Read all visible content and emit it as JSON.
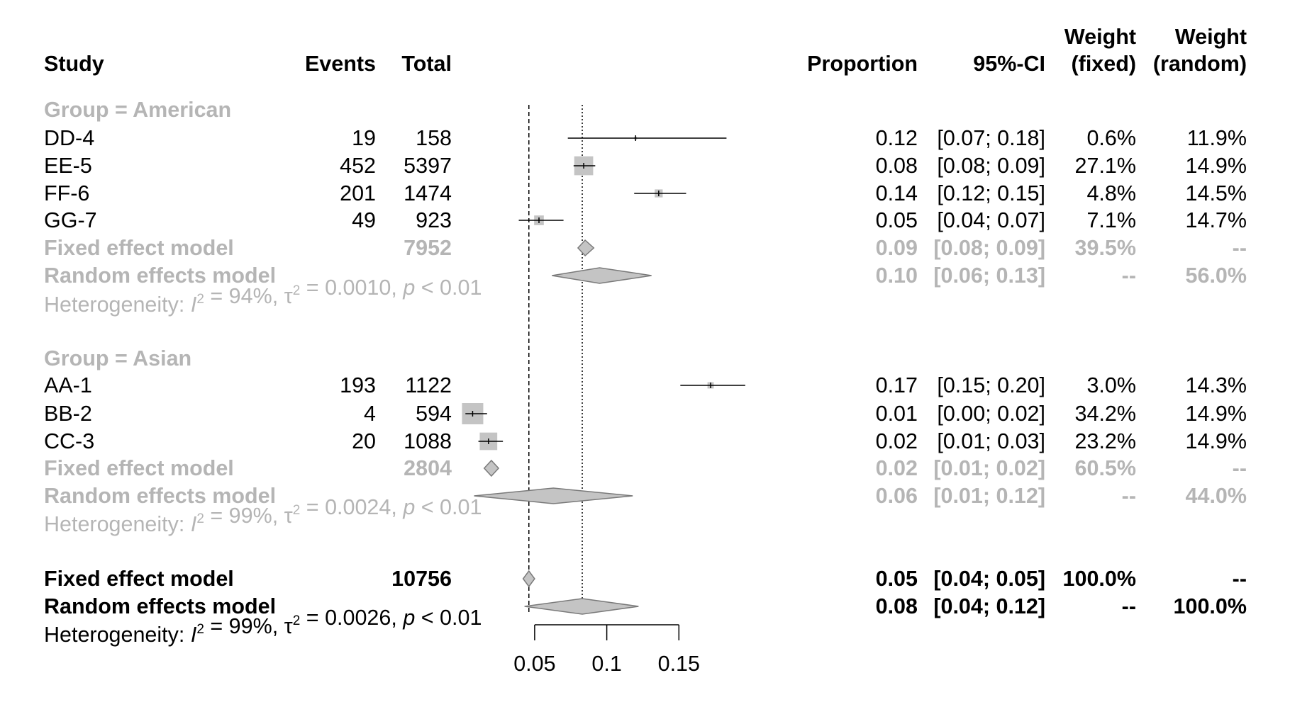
{
  "chart_data": {
    "type": "forest",
    "x_ticks": [
      "0.05",
      "0.1",
      "0.15"
    ],
    "x_tick_values": [
      0.05,
      0.1,
      0.15
    ],
    "xlim": [
      0.05,
      0.15
    ],
    "reference_lines": {
      "fixed_overall": 0.046,
      "random_overall": 0.083
    },
    "headers": {
      "study": "Study",
      "events": "Events",
      "total": "Total",
      "proportion": "Proportion",
      "ci": "95%-CI",
      "weight_fixed": [
        "Weight",
        "(fixed)"
      ],
      "weight_random": [
        "Weight",
        "(random)"
      ]
    },
    "groups": [
      {
        "label": "Group = American",
        "studies": [
          {
            "name": "DD-4",
            "events": "19",
            "total": "158",
            "prop": "0.12",
            "ci": "[0.07; 0.18]",
            "wf": "0.6%",
            "wr": "11.9%",
            "est": 0.12,
            "lo": 0.073,
            "hi": 0.183,
            "w": 0.6
          },
          {
            "name": "EE-5",
            "events": "452",
            "total": "5397",
            "prop": "0.08",
            "ci": "[0.08; 0.09]",
            "wf": "27.1%",
            "wr": "14.9%",
            "est": 0.084,
            "lo": 0.077,
            "hi": 0.092,
            "w": 27.1
          },
          {
            "name": "FF-6",
            "events": "201",
            "total": "1474",
            "prop": "0.14",
            "ci": "[0.12; 0.15]",
            "wf": "4.8%",
            "wr": "14.5%",
            "est": 0.136,
            "lo": 0.119,
            "hi": 0.155,
            "w": 4.8
          },
          {
            "name": "GG-7",
            "events": "49",
            "total": "923",
            "prop": "0.05",
            "ci": "[0.04; 0.07]",
            "wf": "7.1%",
            "wr": "14.7%",
            "est": 0.053,
            "lo": 0.039,
            "hi": 0.07,
            "w": 7.1
          }
        ],
        "fixed": {
          "label": "Fixed effect model",
          "total": "7952",
          "prop": "0.09",
          "ci": "[0.08; 0.09]",
          "wf": "39.5%",
          "wr": "--",
          "est": 0.085,
          "lo": 0.08,
          "hi": 0.091
        },
        "random": {
          "label": "Random effects model",
          "total": "",
          "prop": "0.10",
          "ci": "[0.06; 0.13]",
          "wf": "--",
          "wr": "56.0%",
          "est": 0.095,
          "lo": 0.062,
          "hi": 0.131
        },
        "heterogeneity": {
          "prefix": "Heterogeneity: ",
          "I": "I",
          "i2val": " = 94%, ",
          "tau": "τ",
          "tau2val": " = 0.0010, ",
          "p": "p",
          "pval": " < 0.01",
          "sup": "2"
        }
      },
      {
        "label": "Group = Asian",
        "studies": [
          {
            "name": "AA-1",
            "events": "193",
            "total": "1122",
            "prop": "0.17",
            "ci": "[0.15; 0.20]",
            "wf": "3.0%",
            "wr": "14.3%",
            "est": 0.172,
            "lo": 0.151,
            "hi": 0.196,
            "w": 3.0
          },
          {
            "name": "BB-2",
            "events": "4",
            "total": "594",
            "prop": "0.01",
            "ci": "[0.00; 0.02]",
            "wf": "34.2%",
            "wr": "14.9%",
            "est": 0.007,
            "lo": 0.002,
            "hi": 0.017,
            "w": 34.2
          },
          {
            "name": "CC-3",
            "events": "20",
            "total": "1088",
            "prop": "0.02",
            "ci": "[0.01; 0.03]",
            "wf": "23.2%",
            "wr": "14.9%",
            "est": 0.018,
            "lo": 0.011,
            "hi": 0.028,
            "w": 23.2
          }
        ],
        "fixed": {
          "label": "Fixed effect model",
          "total": "2804",
          "prop": "0.02",
          "ci": "[0.01; 0.02]",
          "wf": "60.5%",
          "wr": "--",
          "est": 0.02,
          "lo": 0.015,
          "hi": 0.025
        },
        "random": {
          "label": "Random effects model",
          "total": "",
          "prop": "0.06",
          "ci": "[0.01; 0.12]",
          "wf": "--",
          "wr": "44.0%",
          "est": 0.063,
          "lo": 0.008,
          "hi": 0.118
        },
        "heterogeneity": {
          "prefix": "Heterogeneity: ",
          "I": "I",
          "i2val": " = 99%, ",
          "tau": "τ",
          "tau2val": " = 0.0024, ",
          "p": "p",
          "pval": " < 0.01",
          "sup": "2"
        }
      }
    ],
    "overall": {
      "fixed": {
        "label": "Fixed effect model",
        "total": "10756",
        "prop": "0.05",
        "ci": "[0.04; 0.05]",
        "wf": "100.0%",
        "wr": "--",
        "est": 0.046,
        "lo": 0.042,
        "hi": 0.05
      },
      "random": {
        "label": "Random effects model",
        "total": "",
        "prop": "0.08",
        "ci": "[0.04; 0.12]",
        "wf": "--",
        "wr": "100.0%",
        "est": 0.083,
        "lo": 0.043,
        "hi": 0.122
      },
      "heterogeneity": {
        "prefix": "Heterogeneity: ",
        "I": "I",
        "i2val": " = 99%, ",
        "tau": "τ",
        "tau2val": " = 0.0026, ",
        "p": "p",
        "pval": " < 0.01",
        "sup": "2"
      }
    },
    "colors": {
      "subgroup_text": "#b5b5b5",
      "box": "#c4c4c4",
      "diamond_fill": "#c4c4c4",
      "diamond_stroke": "#7a7a7a",
      "line": "#000000"
    }
  }
}
